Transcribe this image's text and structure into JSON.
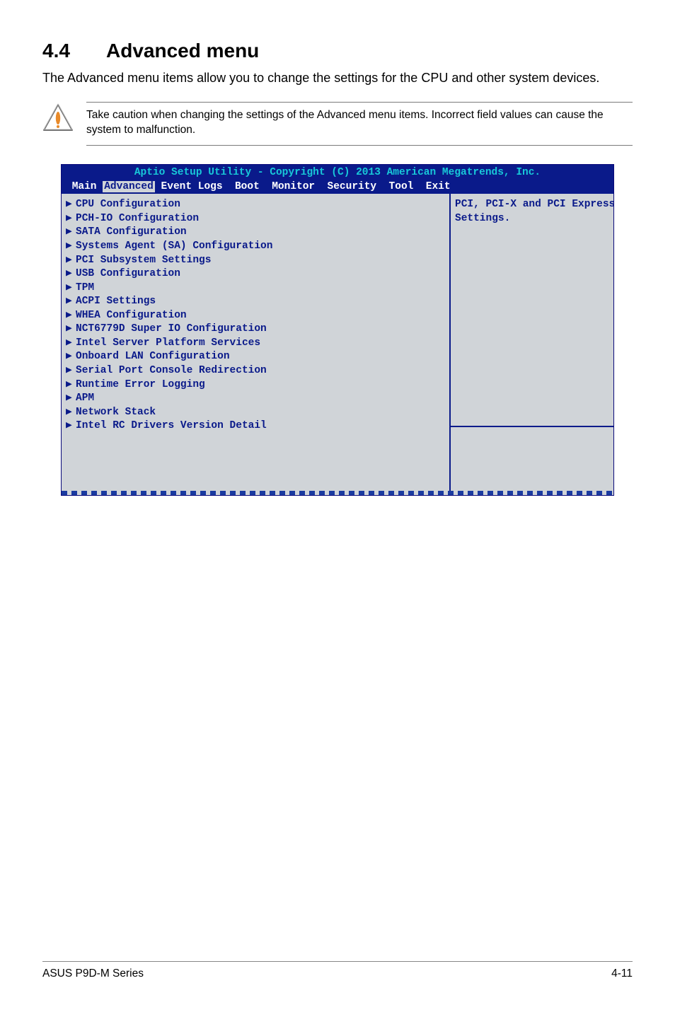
{
  "heading": {
    "number": "4.4",
    "title": "Advanced menu"
  },
  "intro": "The Advanced menu items allow you to change the settings for the CPU and other system devices.",
  "caution": "Take caution when changing the settings of the Advanced menu items. Incorrect field values can cause the system to malfunction.",
  "bios": {
    "header_line": "Aptio Setup Utility - Copyright (C) 2013 American Megatrends, Inc.",
    "tabs": [
      "Main",
      "Advanced",
      "Event Logs",
      "Boot",
      "Monitor",
      "Security",
      "Tool",
      "Exit"
    ],
    "active_tab_index": 1,
    "help_text": "PCI, PCI-X and PCI Express\nSettings.",
    "menu_items": [
      "CPU Configuration",
      "PCH-IO Configuration",
      "SATA Configuration",
      "Systems Agent (SA) Configuration",
      "PCI Subsystem Settings",
      "USB Configuration",
      "TPM",
      "ACPI Settings",
      "WHEA Configuration",
      "NCT6779D Super IO Configuration",
      "Intel Server Platform Services",
      "Onboard LAN Configuration",
      "Serial Port Console Redirection",
      "Runtime Error Logging",
      "APM",
      "Network Stack",
      "Intel RC Drivers Version Detail"
    ],
    "colors": {
      "header_bg": "#0a1a8a",
      "header_accent": "#18c8d8",
      "body_bg": "#d0d4d8",
      "text": "#0a1a8a"
    }
  },
  "footer": {
    "left": "ASUS P9D-M Series",
    "right": "4-11"
  }
}
